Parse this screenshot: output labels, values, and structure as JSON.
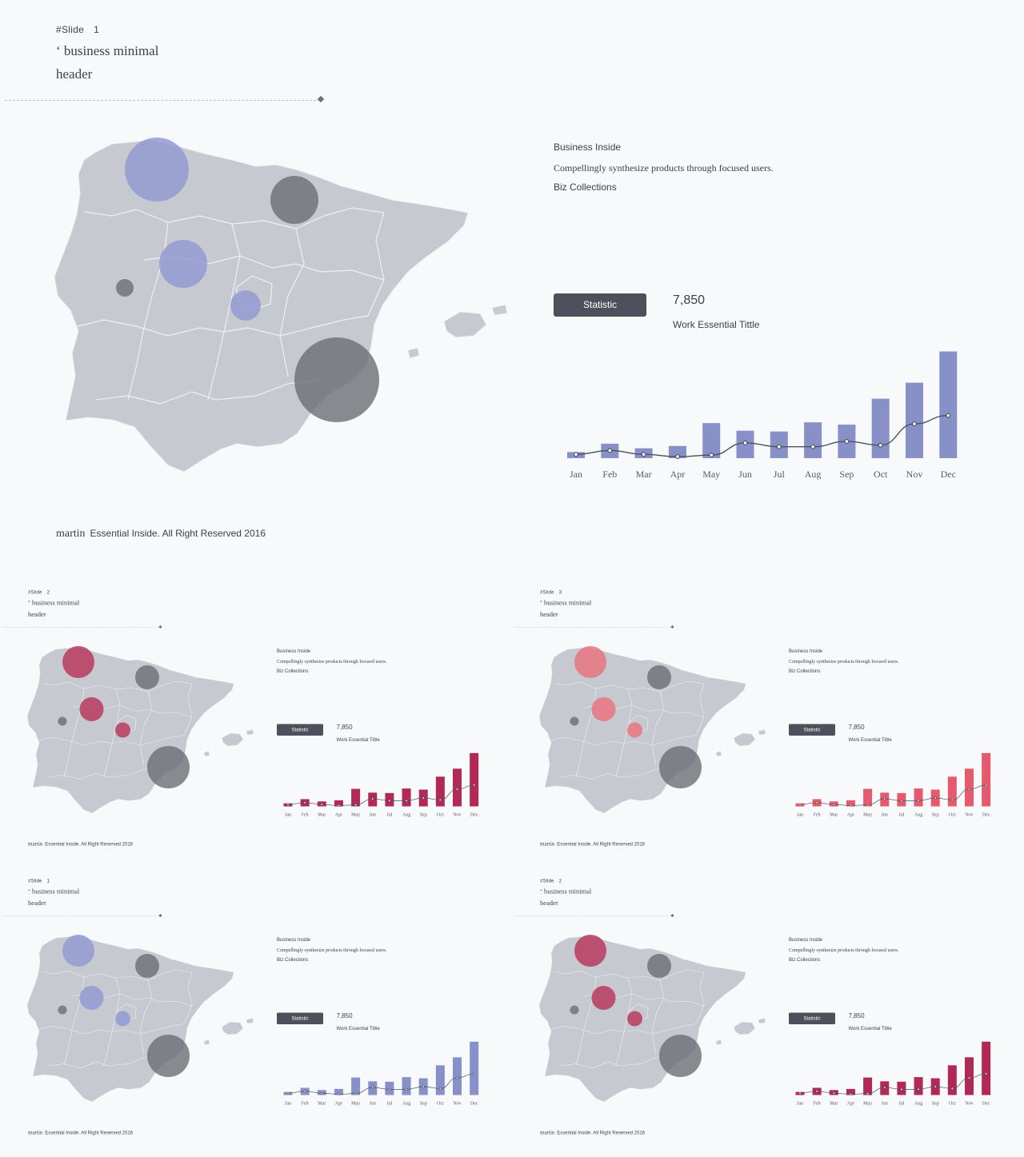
{
  "slides": [
    {
      "slide_label": "#Slide",
      "slide_no": "1",
      "title_line1": "‘ business minimal",
      "title_line2": "header",
      "info_title": "Business Inside",
      "info_text": "Compellingly synthesize products through focused users.",
      "info_sub": "Biz Collections",
      "stat_button": "Statistic",
      "stat_value": "7,850",
      "stat_caption": "Work Essential Tittle",
      "footer_brand": "martin",
      "footer_text": "Essential Inside. All Right Reserved 2016",
      "colors": {
        "bar": "#8890c8",
        "bubble_primary": "#939bd2",
        "bubble_dark": "#6b6e75"
      }
    },
    {
      "slide_label": "#Slide",
      "slide_no": "2",
      "title_line1": "‘ business minimal",
      "title_line2": "header",
      "info_title": "Business Inside",
      "info_text": "Compellingly synthesize products through focused users.",
      "info_sub": "Biz Collections",
      "stat_button": "Statistic",
      "stat_value": "7,850",
      "stat_caption": "Work Essential Tittle",
      "footer_brand": "martin",
      "footer_text": "Essential Inside. All Right Reserved 2016",
      "colors": {
        "bar": "#b02a55",
        "bubble_primary": "#b9395f",
        "bubble_dark": "#6b6e75"
      }
    },
    {
      "slide_label": "#Slide",
      "slide_no": "3",
      "title_line1": "‘ business minimal",
      "title_line2": "header",
      "info_title": "Business Inside",
      "info_text": "Compellingly synthesize products through focused users.",
      "info_sub": "Biz Collections",
      "stat_button": "Statistic",
      "stat_value": "7,850",
      "stat_caption": "Work Essential Tittle",
      "footer_brand": "martin",
      "footer_text": "Essential Inside. All Right Reserved 2016",
      "colors": {
        "bar": "#e65a6e",
        "bubble_primary": "#e77580",
        "bubble_dark": "#6b6e75"
      }
    },
    {
      "slide_label": "#Slide",
      "slide_no": "1",
      "title_line1": "‘ business minimal",
      "title_line2": "header",
      "info_title": "Business Inside",
      "info_text": "Compellingly synthesize products through focused users.",
      "info_sub": "Biz Collections",
      "stat_button": "Statistic",
      "stat_value": "7,850",
      "stat_caption": "Work Essential Tittle",
      "footer_brand": "martin",
      "footer_text": "Essential Inside. All Right Reserved 2016",
      "colors": {
        "bar": "#8890c8",
        "bubble_primary": "#939bd2",
        "bubble_dark": "#6b6e75"
      }
    },
    {
      "slide_label": "#Slide",
      "slide_no": "2",
      "title_line1": "‘ business minimal",
      "title_line2": "header",
      "info_title": "Business Inside",
      "info_text": "Compellingly synthesize products through focused users.",
      "info_sub": "Biz Collections",
      "stat_button": "Statistic",
      "stat_value": "7,850",
      "stat_caption": "Work Essential Tittle",
      "footer_brand": "martin",
      "footer_text": "Essential Inside. All Right Reserved 2016",
      "colors": {
        "bar": "#b02a55",
        "bubble_primary": "#b9395f",
        "bubble_dark": "#6b6e75"
      }
    }
  ],
  "chart_data": {
    "type": "bar",
    "categories": [
      "Jan",
      "Feb",
      "Mar",
      "Apr",
      "May",
      "Jun",
      "Jul",
      "Aug",
      "Sep",
      "Oct",
      "Nov",
      "Dec"
    ],
    "series": [
      {
        "values": [
          8,
          19,
          13,
          16,
          46,
          36,
          35,
          47,
          44,
          78,
          99,
          140
        ]
      },
      {
        "values": [
          5,
          10,
          5,
          2,
          4,
          20,
          15,
          15,
          22,
          17,
          45,
          56
        ]
      }
    ],
    "ylim": [
      0,
      150
    ],
    "map_bubbles": [
      {
        "region": "galicia",
        "value": 40,
        "style": "primary"
      },
      {
        "region": "navarra",
        "value": 30,
        "style": "dark"
      },
      {
        "region": "castilla-leon",
        "value": 30,
        "style": "primary"
      },
      {
        "region": "extremadura-north",
        "value": 11,
        "style": "dark"
      },
      {
        "region": "madrid",
        "value": 19,
        "style": "primary"
      },
      {
        "region": "valencia-murcia",
        "value": 53,
        "style": "dark"
      }
    ]
  }
}
